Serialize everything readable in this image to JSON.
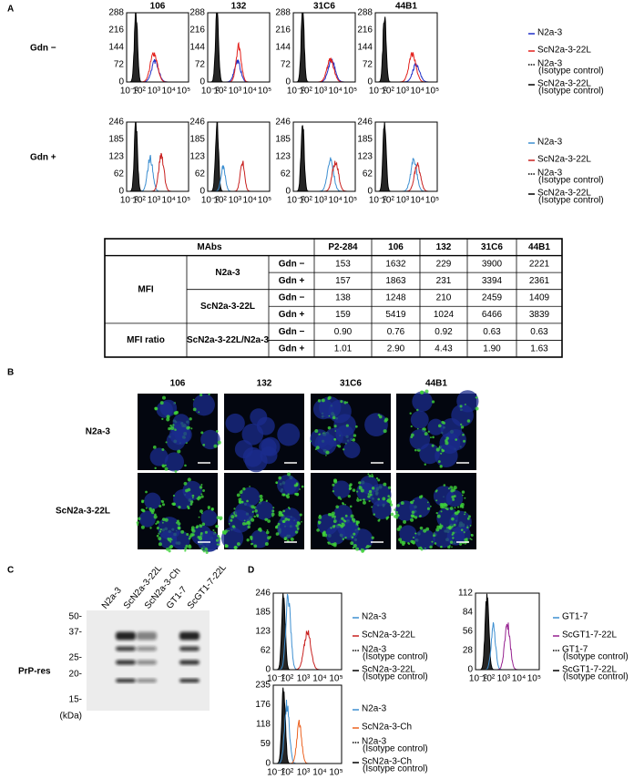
{
  "panel_a": {
    "label": "A",
    "columns": [
      "106",
      "132",
      "31C6",
      "44B1"
    ],
    "x_ticks": [
      "10⁻²",
      "10²",
      "10³",
      "10⁴",
      "10⁵"
    ],
    "rows": [
      {
        "label": "Gdn −",
        "y_ticks": [
          "288",
          "216",
          "144",
          "72",
          "0"
        ],
        "legend": [
          {
            "text": "N2a-3",
            "color": "#1f2fc8"
          },
          {
            "text": "ScN2a-3-22L",
            "color": "#e3211c"
          },
          {
            "text": "N2a-3",
            "note": "(Isotype control)",
            "color": "#000000"
          },
          {
            "text": "ScN2a-3-22L",
            "note": "(Isotype control)",
            "color": "#000000"
          }
        ]
      },
      {
        "label": "Gdn +",
        "y_ticks": [
          "246",
          "185",
          "123",
          "62",
          "0"
        ],
        "legend": [
          {
            "text": "N2a-3",
            "color": "#3d8fd1"
          },
          {
            "text": "ScN2a-3-22L",
            "color": "#c8201f"
          },
          {
            "text": "N2a-3",
            "note": "(Isotype control)",
            "color": "#000000"
          },
          {
            "text": "ScN2a-3-22L",
            "note": "(Isotype control)",
            "color": "#000000"
          }
        ]
      }
    ],
    "table": {
      "header": [
        "MAbs",
        "P2-284",
        "106",
        "132",
        "31C6",
        "44B1"
      ],
      "groups": [
        {
          "label": "MFI",
          "subgroups": [
            {
              "label": "N2a-3",
              "rows": [
                {
                  "condition": "Gdn −",
                  "values": [
                    "153",
                    "1632",
                    "229",
                    "3900",
                    "2221"
                  ]
                },
                {
                  "condition": "Gdn +",
                  "values": [
                    "157",
                    "1863",
                    "231",
                    "3394",
                    "2361"
                  ]
                }
              ]
            },
            {
              "label": "ScN2a-3-22L",
              "rows": [
                {
                  "condition": "Gdn −",
                  "values": [
                    "138",
                    "1248",
                    "210",
                    "2459",
                    "1409"
                  ]
                },
                {
                  "condition": "Gdn +",
                  "values": [
                    "159",
                    "5419",
                    "1024",
                    "6466",
                    "3839"
                  ]
                }
              ]
            }
          ]
        },
        {
          "label": "MFI ratio",
          "subgroups": [
            {
              "label": "ScN2a-3-22L/N2a-3",
              "rows": [
                {
                  "condition": "Gdn −",
                  "values": [
                    "0.90",
                    "0.76",
                    "0.92",
                    "0.63",
                    "0.63"
                  ]
                },
                {
                  "condition": "Gdn +",
                  "values": [
                    "1.01",
                    "2.90",
                    "4.43",
                    "1.90",
                    "1.63"
                  ]
                }
              ]
            }
          ]
        }
      ]
    }
  },
  "panel_b": {
    "label": "B",
    "columns": [
      "106",
      "132",
      "31C6",
      "44B1"
    ],
    "rows": [
      "N2a-3",
      "ScN2a-3-22L"
    ]
  },
  "panel_c": {
    "label": "C",
    "lanes": [
      "N2a-3",
      "ScN2a-3-22L",
      "ScN2a-3-Ch",
      "GT1-7",
      "ScGT1-7-22L"
    ],
    "markers": [
      "50-",
      "37-",
      "25-",
      "20-",
      "15-"
    ],
    "unit": "(kDa)",
    "row_label": "PrP-res"
  },
  "panel_d": {
    "label": "D",
    "x_ticks": [
      "10⁻²",
      "10²",
      "10³",
      "10⁴",
      "10⁵"
    ],
    "plots": [
      {
        "y_ticks": [
          "246",
          "185",
          "123",
          "62",
          "0"
        ],
        "legend": [
          {
            "text": "N2a-3",
            "color": "#3d8fd1"
          },
          {
            "text": "ScN2a-3-22L",
            "color": "#c8201f"
          },
          {
            "text": "N2a-3",
            "note": "(Isotype control)",
            "color": "#000000"
          },
          {
            "text": "ScN2a-3-22L",
            "note": "(Isotype control)",
            "color": "#000000"
          }
        ]
      },
      {
        "y_ticks": [
          "112",
          "84",
          "56",
          "28",
          "0"
        ],
        "legend": [
          {
            "text": "GT1-7",
            "color": "#3d8fd1"
          },
          {
            "text": "ScGT1-7-22L",
            "color": "#96208f"
          },
          {
            "text": "GT1-7",
            "note": "(Isotype control)",
            "color": "#000000"
          },
          {
            "text": "ScGT1-7-22L",
            "note": "(Isotype control)",
            "color": "#000000"
          }
        ]
      },
      {
        "y_ticks": [
          "235",
          "176",
          "118",
          "59",
          "0"
        ],
        "legend": [
          {
            "text": "N2a-3",
            "color": "#3d8fd1"
          },
          {
            "text": "ScN2a-3-Ch",
            "color": "#ec6220"
          },
          {
            "text": "N2a-3",
            "note": "(Isotype control)",
            "color": "#000000"
          },
          {
            "text": "ScN2a-3-Ch",
            "note": "(Isotype control)",
            "color": "#000000"
          }
        ]
      }
    ]
  }
}
